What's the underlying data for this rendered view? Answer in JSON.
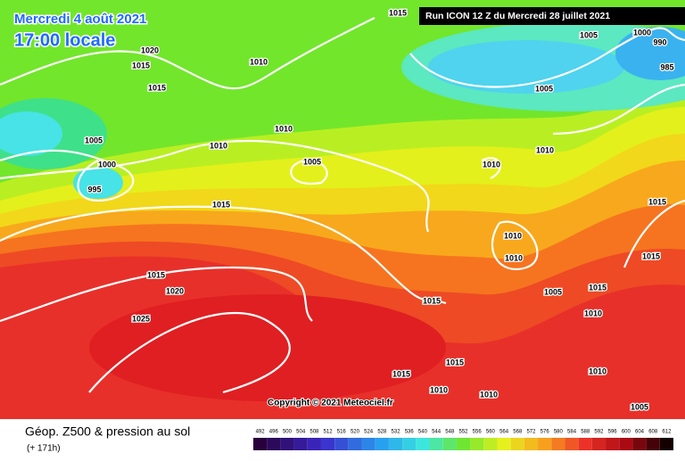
{
  "header": {
    "date": "Mercredi 4 août 2021",
    "time": "17:00 locale",
    "run": "Run ICON 12 Z du Mercredi 28 juillet 2021"
  },
  "copyright": "Copyright © 2021 Meteociel.fr",
  "footer": {
    "title": "Géop. Z500 & pression au sol",
    "lead": "(+ 171h)"
  },
  "scale": [
    492,
    496,
    500,
    504,
    508,
    512,
    516,
    520,
    524,
    528,
    532,
    536,
    540,
    544,
    548,
    552,
    556,
    560,
    564,
    568,
    572,
    576,
    580,
    584,
    588,
    592,
    596,
    600,
    604,
    608,
    612
  ],
  "isobars": [
    1015,
    1020,
    1015,
    1010,
    1015,
    1005,
    1000,
    990,
    985,
    1005,
    1010,
    1010,
    1005,
    1000,
    995,
    1005,
    1010,
    1010,
    1015,
    1015,
    1010,
    1010,
    1015,
    1015,
    1020,
    1015,
    1005,
    1015,
    1025,
    1010,
    1015,
    1010,
    1010,
    1010,
    1005,
    1015
  ]
}
